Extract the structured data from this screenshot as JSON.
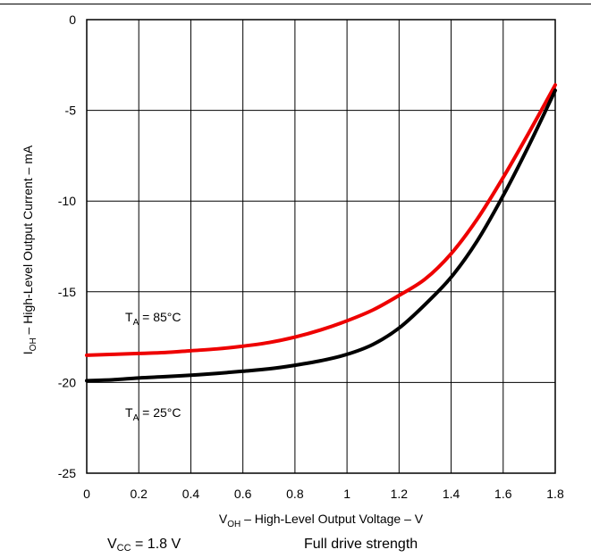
{
  "chart_data": {
    "type": "line",
    "xlabel": {
      "main": "V",
      "sub": "OH",
      "rest": " – High-Level Output Voltage – V"
    },
    "ylabel": {
      "main": "I",
      "sub": "OH",
      "rest": " – High-Level Output Current – mA"
    },
    "xlim": [
      0,
      1.8
    ],
    "ylim": [
      -25,
      0
    ],
    "x_ticks": [
      0,
      0.2,
      0.4,
      0.6,
      0.8,
      1,
      1.2,
      1.4,
      1.6,
      1.8
    ],
    "x_tick_labels": [
      "0",
      "0.2",
      "0.4",
      "0.6",
      "0.8",
      "1",
      "1.2",
      "1.4",
      "1.6",
      "1.8"
    ],
    "y_ticks": [
      0,
      -5,
      -10,
      -15,
      -20,
      -25
    ],
    "y_tick_labels": [
      "0",
      "-5",
      "-10",
      "-15",
      "-20",
      "-25"
    ],
    "grid": true,
    "series": [
      {
        "name": "85°C",
        "label": {
          "main": "T",
          "sub": "A",
          "rest": " = 85°C"
        },
        "color": "#ee0000",
        "x": [
          0,
          0.1,
          0.2,
          0.3,
          0.4,
          0.5,
          0.6,
          0.7,
          0.8,
          0.9,
          1.0,
          1.1,
          1.2,
          1.3,
          1.4,
          1.5,
          1.6,
          1.7,
          1.8
        ],
        "y": [
          -18.5,
          -18.45,
          -18.4,
          -18.35,
          -18.25,
          -18.15,
          -18.0,
          -17.8,
          -17.5,
          -17.1,
          -16.6,
          -16.0,
          -15.2,
          -14.3,
          -12.9,
          -11.0,
          -8.7,
          -6.2,
          -3.6
        ]
      },
      {
        "name": "25°C",
        "label": {
          "main": "T",
          "sub": "A",
          "rest": " = 25°C"
        },
        "color": "#000000",
        "x": [
          0,
          0.1,
          0.2,
          0.3,
          0.4,
          0.5,
          0.6,
          0.7,
          0.8,
          0.9,
          1.0,
          1.1,
          1.2,
          1.3,
          1.4,
          1.5,
          1.6,
          1.7,
          1.8
        ],
        "y": [
          -19.9,
          -19.85,
          -19.75,
          -19.68,
          -19.6,
          -19.5,
          -19.38,
          -19.25,
          -19.05,
          -18.8,
          -18.45,
          -17.9,
          -17.0,
          -15.7,
          -14.2,
          -12.2,
          -9.7,
          -6.9,
          -3.9
        ]
      }
    ]
  },
  "footer": {
    "vcc": {
      "main": "V",
      "sub": "CC",
      "rest": " = 1.8 V"
    },
    "drive": "Full drive strength"
  }
}
